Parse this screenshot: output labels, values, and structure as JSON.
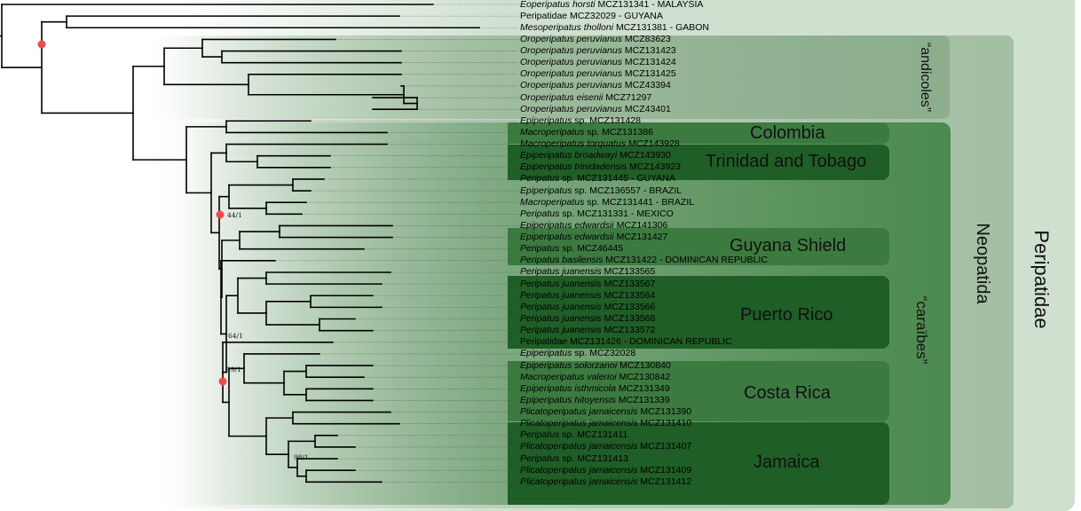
{
  "groups": {
    "peripatidae": "Peripatidae",
    "neopatida": "Neopatida",
    "andicoles": "“andicoles”",
    "caraibes": "“caraïbes”"
  },
  "regions": {
    "colombia": "Colombia",
    "trinidad": "Trinidad and Tobago",
    "guyana": "Guyana Shield",
    "puerto_rico": "Puerto Rico",
    "costa_rica": "Costa Rica",
    "jamaica": "Jamaica"
  },
  "supports": {
    "s44": "44/1",
    "s64": "64/1",
    "s99": "99/1",
    "s98": "98/1"
  },
  "colors": {
    "peripatidae_box": "#c9dcc9",
    "neopatida_box": "#a6c1a6",
    "andicoles_box": "#93b393",
    "caraibes_box": "#4f8a52",
    "region_box": "#2f6b34",
    "region_box_dark": "#1e5a24",
    "node_marker": "#f04a4a"
  },
  "tips": [
    {
      "species": "Eoperipatus horsti",
      "rest": " MCZ131341 - MALAYSIA"
    },
    {
      "species": "",
      "rest": "Peripatidae MCZ32029 - GUYANA"
    },
    {
      "species": "Mesoperipatus tholloni",
      "rest": " MCZ131381 - GABON"
    },
    {
      "species": "Oroperipatus peruvianus",
      "rest": " MCZ83623"
    },
    {
      "species": "Oroperipatus peruvianus",
      "rest": " MCZ131423"
    },
    {
      "species": "Oroperipatus peruvianus",
      "rest": " MCZ131424"
    },
    {
      "species": "Oroperipatus peruvianus",
      "rest": " MCZ131425"
    },
    {
      "species": "Oroperipatus peruvianus",
      "rest": " MCZ43394"
    },
    {
      "species": "Oroperipatus eisenii",
      "rest": " MCZ71297"
    },
    {
      "species": "Oroperipatus peruvianus",
      "rest": " MCZ43401"
    },
    {
      "species": "Epiperipatus",
      "rest": " sp. MCZ131428"
    },
    {
      "species": "Macroperipatus",
      "rest": " sp. MCZ131386"
    },
    {
      "species": "Macroperipatus torquatus",
      "rest": " MCZ143928"
    },
    {
      "species": "Epiperipatus broadwayi",
      "rest": " MCZ143930"
    },
    {
      "species": "Epiperipatus trinidadensis",
      "rest": " MCZ143923"
    },
    {
      "species": "Peripatus",
      "rest": " sp. MCZ131445 - GUYANA"
    },
    {
      "species": "Epiperipatus",
      "rest": " sp. MCZ136557 - BRAZIL"
    },
    {
      "species": "Macroperipatus",
      "rest": " sp. MCZ131441 - BRAZIL"
    },
    {
      "species": "Peripatus",
      "rest": " sp. MCZ131331 - MEXICO"
    },
    {
      "species": "Epiperipatus edwardsii",
      "rest": " MCZ141306"
    },
    {
      "species": "Epiperipatus edwardsii",
      "rest": " MCZ131427"
    },
    {
      "species": "Peripatus",
      "rest": " sp. MCZ46445"
    },
    {
      "species": "Peripatus basilensis",
      "rest": " MCZ131422 - DOMINICAN REPUBLIC"
    },
    {
      "species": "Peripatus juanensis",
      "rest": " MCZ133565"
    },
    {
      "species": "Peripatus juanensis",
      "rest": " MCZ133567"
    },
    {
      "species": "Peripatus juanensis",
      "rest": " MCZ133564"
    },
    {
      "species": "Peripatus juanensis",
      "rest": " MCZ133566"
    },
    {
      "species": "Peripatus juanensis",
      "rest": " MCZ133568"
    },
    {
      "species": "Peripatus juanensis",
      "rest": " MCZ133572"
    },
    {
      "species": "",
      "rest": "Peripatidae MCZ131426 - DOMINICAN REPUBLIC"
    },
    {
      "species": "Epiperipatus",
      "rest": " sp. MCZ32028"
    },
    {
      "species": "Epiperipatus solorzanoi",
      "rest": " MCZ130840"
    },
    {
      "species": "Macroperipatus valerioi",
      "rest": " MCZ130842"
    },
    {
      "species": "Epiperipatus isthmicola",
      "rest": " MCZ131349"
    },
    {
      "species": "Epiperipatus hitoyensis",
      "rest": " MCZ131339"
    },
    {
      "species": "Plicatoperipatus jamaicensis",
      "rest": " MCZ131390"
    },
    {
      "species": "Plicatoperipatus jamaicensis",
      "rest": " MCZ131410"
    },
    {
      "species": "Peripatus",
      "rest": " sp. MCZ131411"
    },
    {
      "species": "Plicatoperipatus jamaicensis",
      "rest": " MCZ131407"
    },
    {
      "species": "Peripatus",
      "rest": " sp. MCZ131413"
    },
    {
      "species": "Plicatoperipatus jamaicensis",
      "rest": " MCZ131409"
    },
    {
      "species": "Plicatoperipatus jamaicensis",
      "rest": " MCZ131412"
    }
  ]
}
